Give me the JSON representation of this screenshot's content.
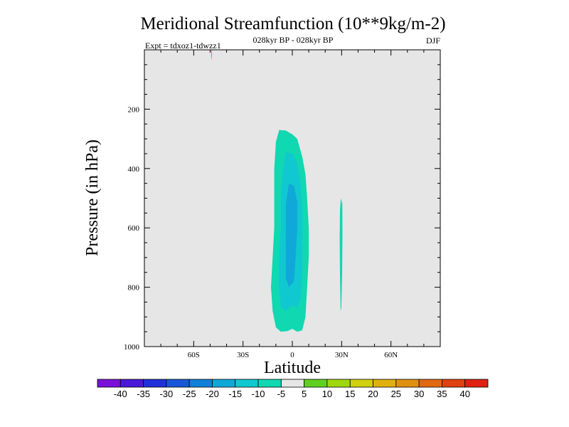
{
  "chart_data": {
    "type": "heatmap",
    "title": "Meridional Streamfunction (10**9kg/m-2)",
    "subtitle_center": "028kyr BP - 028kyr BP",
    "subtitle_left": "Expt = tdxoz1-tdwzz1",
    "subtitle_right": "DJF",
    "xlabel": "Latitude",
    "ylabel": "Pressure (in hPa)",
    "xlim": [
      -90,
      90
    ],
    "ylim": [
      1000,
      0
    ],
    "x_ticks": [
      {
        "value": -60,
        "label": "60S"
      },
      {
        "value": -30,
        "label": "30S"
      },
      {
        "value": 0,
        "label": "0"
      },
      {
        "value": 30,
        "label": "30N"
      },
      {
        "value": 60,
        "label": "60N"
      }
    ],
    "y_ticks": [
      {
        "value": 200,
        "label": "200"
      },
      {
        "value": 400,
        "label": "400"
      },
      {
        "value": 600,
        "label": "600"
      },
      {
        "value": 800,
        "label": "800"
      },
      {
        "value": 1000,
        "label": "1000"
      }
    ],
    "background_color": "#e6e6e6",
    "colorbar": {
      "levels": [
        "-40",
        "-35",
        "-30",
        "-25",
        "-20",
        "-15",
        "-10",
        "-5",
        "5",
        "10",
        "15",
        "20",
        "25",
        "30",
        "35",
        "40"
      ],
      "colors": [
        "#7a10d8",
        "#4a18d8",
        "#2030d8",
        "#1858d8",
        "#1080d8",
        "#10a8d8",
        "#10c8d0",
        "#10d8b0",
        "#e6e6e6",
        "#60d020",
        "#a0d810",
        "#d0d010",
        "#e0b010",
        "#e09010",
        "#e06810",
        "#e04010",
        "#e02010"
      ]
    },
    "contours": [
      {
        "name": "main-cell-outer",
        "level_color": "#10d8b0",
        "points": [
          [
            -8,
            270
          ],
          [
            -4,
            272
          ],
          [
            0,
            285
          ],
          [
            3,
            300
          ],
          [
            6,
            360
          ],
          [
            8,
            420
          ],
          [
            9,
            500
          ],
          [
            10,
            600
          ],
          [
            10,
            700
          ],
          [
            9,
            800
          ],
          [
            8,
            900
          ],
          [
            6,
            945
          ],
          [
            3,
            950
          ],
          [
            0,
            940
          ],
          [
            -3,
            948
          ],
          [
            -7,
            950
          ],
          [
            -10,
            935
          ],
          [
            -12,
            880
          ],
          [
            -13,
            800
          ],
          [
            -12,
            700
          ],
          [
            -11,
            600
          ],
          [
            -11,
            500
          ],
          [
            -11,
            400
          ],
          [
            -10,
            310
          ]
        ]
      },
      {
        "name": "main-cell-mid",
        "level_color": "#10c8d0",
        "points": [
          [
            -4,
            345
          ],
          [
            0,
            350
          ],
          [
            3,
            380
          ],
          [
            5,
            450
          ],
          [
            6,
            550
          ],
          [
            6,
            650
          ],
          [
            6,
            750
          ],
          [
            5,
            840
          ],
          [
            3,
            870
          ],
          [
            0,
            860
          ],
          [
            -4,
            880
          ],
          [
            -7,
            865
          ],
          [
            -8,
            800
          ],
          [
            -8,
            700
          ],
          [
            -7,
            600
          ],
          [
            -7,
            500
          ],
          [
            -6,
            420
          ]
        ]
      },
      {
        "name": "main-cell-inner",
        "level_color": "#10a8d8",
        "points": [
          [
            -2,
            450
          ],
          [
            1,
            458
          ],
          [
            3,
            510
          ],
          [
            3,
            600
          ],
          [
            2,
            700
          ],
          [
            1,
            780
          ],
          [
            -2,
            800
          ],
          [
            -4,
            770
          ],
          [
            -4,
            680
          ],
          [
            -4,
            600
          ],
          [
            -4,
            520
          ]
        ]
      },
      {
        "name": "nh-cell",
        "level_color": "#10d8b0",
        "points": [
          [
            29.5,
            500
          ],
          [
            30.4,
            520
          ],
          [
            30.5,
            620
          ],
          [
            30.3,
            760
          ],
          [
            29.8,
            870
          ],
          [
            29.4,
            880
          ],
          [
            29.0,
            760
          ],
          [
            28.8,
            640
          ],
          [
            29.0,
            540
          ]
        ]
      },
      {
        "name": "top-sliver",
        "level_color": "#10d8b0",
        "points": [
          [
            -49.3,
            0
          ],
          [
            -48.9,
            0
          ],
          [
            -48.9,
            20
          ],
          [
            -49.2,
            35
          ],
          [
            -49.4,
            20
          ]
        ]
      }
    ]
  }
}
